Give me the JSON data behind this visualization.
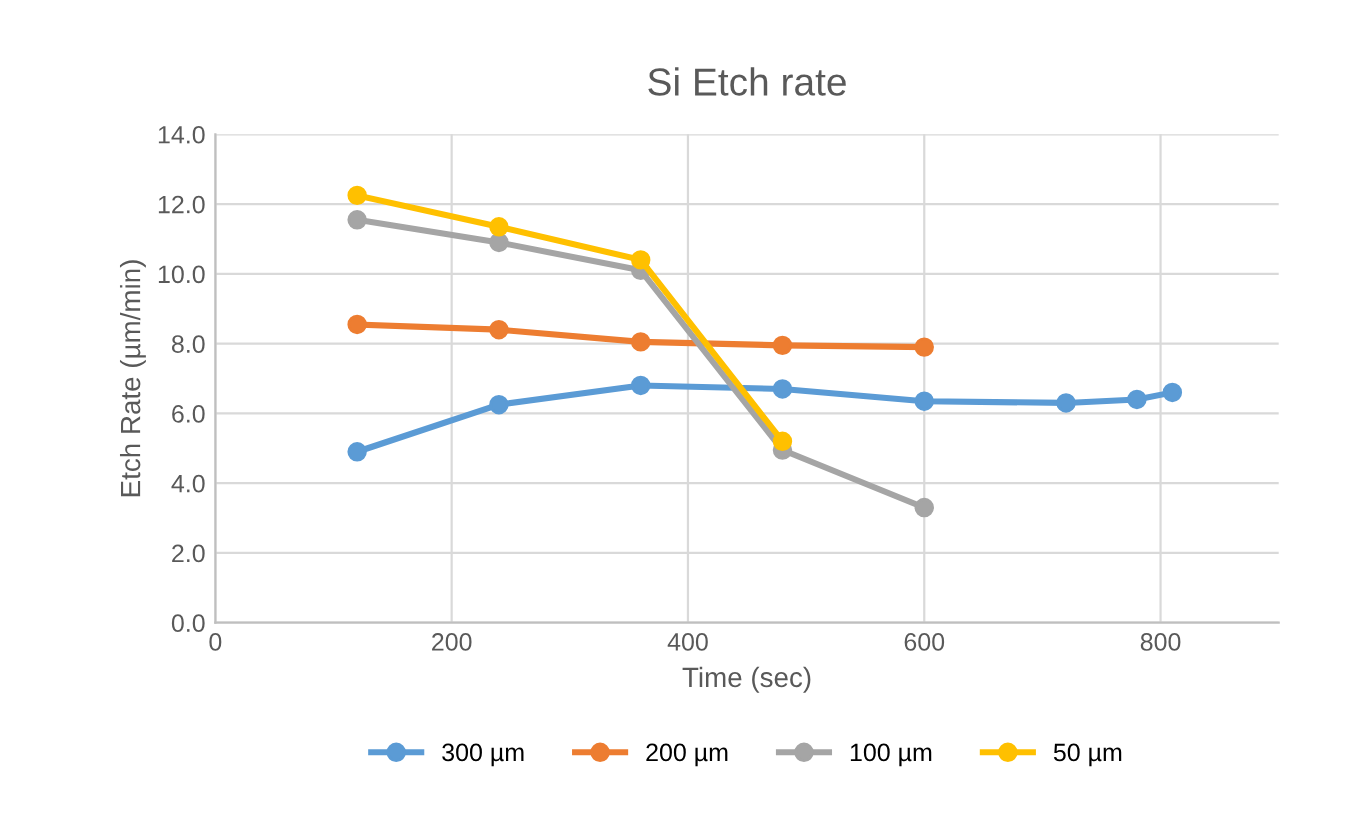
{
  "chart_data": {
    "type": "line",
    "title": "Si Etch rate",
    "xlabel": "Time (sec)",
    "ylabel": "Etch Rate (µm/min)",
    "series": [
      {
        "name": "300 µm",
        "color": "#5b9bd5",
        "x": [
          120,
          240,
          360,
          480,
          600,
          720,
          780,
          810
        ],
        "values": [
          4.9,
          6.25,
          6.8,
          6.7,
          6.35,
          6.3,
          6.4,
          6.6
        ]
      },
      {
        "name": "200 µm",
        "color": "#ed7d31",
        "x": [
          120,
          240,
          360,
          480,
          600
        ],
        "values": [
          8.55,
          8.4,
          8.05,
          7.95,
          7.9
        ]
      },
      {
        "name": "100 µm",
        "color": "#a5a5a5",
        "x": [
          120,
          240,
          360,
          480,
          600
        ],
        "values": [
          11.55,
          10.9,
          10.1,
          4.95,
          3.3
        ]
      },
      {
        "name": "50 µm",
        "color": "#ffc000",
        "x": [
          120,
          240,
          360,
          480
        ],
        "values": [
          12.25,
          11.35,
          10.4,
          5.2
        ]
      }
    ],
    "xlim": [
      0,
      900
    ],
    "xticks": [
      0,
      200,
      400,
      600,
      800
    ],
    "ylim": [
      0,
      14
    ],
    "yticks": [
      {
        "value": 0,
        "label": "0.0"
      },
      {
        "value": 2,
        "label": "2.0"
      },
      {
        "value": 4,
        "label": "4.0"
      },
      {
        "value": 6,
        "label": "6.0"
      },
      {
        "value": 8,
        "label": "8.0"
      },
      {
        "value": 10,
        "label": "10.0"
      },
      {
        "value": 12,
        "label": "12.0"
      },
      {
        "value": 14,
        "label": "14.0"
      }
    ],
    "grid": true,
    "legend": "bottom",
    "marker": "circle",
    "line_style": "solid"
  }
}
